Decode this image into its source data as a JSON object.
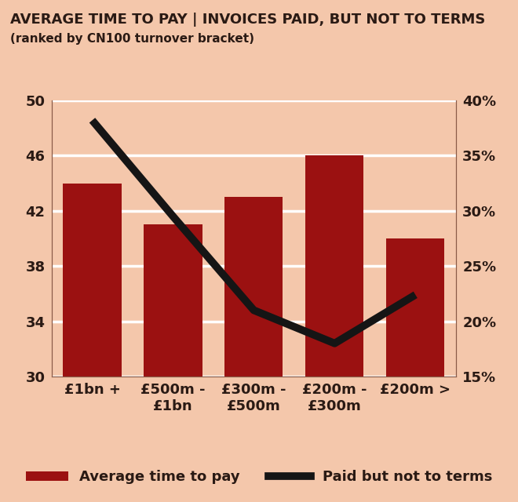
{
  "chart_data": {
    "type": "bar",
    "title": "AVERAGE TIME TO PAY | INVOICES PAID, BUT NOT TO TERMS",
    "subtitle": "(ranked by CN100 turnover bracket)",
    "categories": [
      "£1bn +",
      "£500m - £1bn",
      "£300m - £500m",
      "£200m - £300m",
      "£200m >"
    ],
    "series": [
      {
        "name": "Average time to pay",
        "type": "bar",
        "color": "#9b1111",
        "values": [
          44,
          41,
          43,
          46,
          40
        ]
      },
      {
        "name": "Paid but not to terms",
        "type": "line",
        "axis": "y2",
        "color": "#151515",
        "values": [
          38.2,
          29.5,
          21,
          18,
          22.4
        ]
      }
    ],
    "ylim": [
      30,
      50
    ],
    "yticks": [
      30,
      34,
      38,
      42,
      46,
      50
    ],
    "y2lim": [
      15,
      40
    ],
    "y2ticks": [
      {
        "value": 15,
        "label": "15%"
      },
      {
        "value": 20,
        "label": "20%"
      },
      {
        "value": 25,
        "label": "25%"
      },
      {
        "value": 30,
        "label": "30%"
      },
      {
        "value": 35,
        "label": "35%"
      },
      {
        "value": 40,
        "label": "40%"
      }
    ],
    "grid": true,
    "legend": "lower center"
  }
}
